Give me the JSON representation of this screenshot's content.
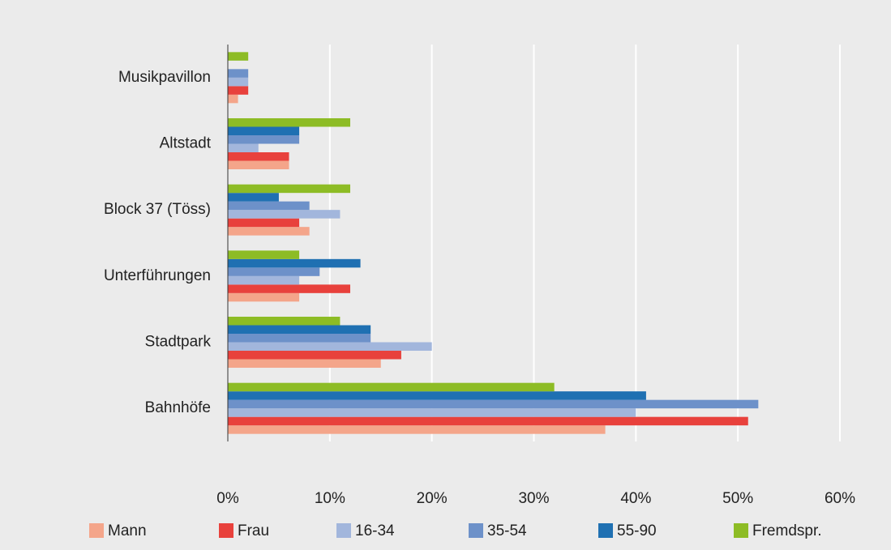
{
  "chart_data": {
    "type": "hbar",
    "categories": [
      "Musikpavillon",
      "Altstadt",
      "Block 37 (Töss)",
      "Unterführungen",
      "Stadtpark",
      "Bahnhöfe"
    ],
    "series": [
      {
        "name": "Mann",
        "color": "#f4a58a",
        "values": [
          1,
          6,
          8,
          7,
          15,
          37
        ]
      },
      {
        "name": "Frau",
        "color": "#e8413c",
        "values": [
          2,
          6,
          7,
          12,
          17,
          51
        ]
      },
      {
        "name": "16-34",
        "color": "#a2b6dc",
        "values": [
          2,
          3,
          11,
          7,
          20,
          40
        ]
      },
      {
        "name": "35-54",
        "color": "#6d91c9",
        "values": [
          2,
          7,
          8,
          9,
          14,
          52
        ]
      },
      {
        "name": "55-90",
        "color": "#1f70b2",
        "values": [
          0,
          7,
          5,
          13,
          14,
          41
        ]
      },
      {
        "name": "Fremdspr.",
        "color": "#8dbc25",
        "values": [
          2,
          12,
          12,
          7,
          11,
          32
        ]
      }
    ],
    "xlim": [
      0,
      60
    ],
    "xticks": [
      {
        "value": 0,
        "label": "0%"
      },
      {
        "value": 10,
        "label": "10%"
      },
      {
        "value": 20,
        "label": "20%"
      },
      {
        "value": 30,
        "label": "30%"
      },
      {
        "value": 40,
        "label": "40%"
      },
      {
        "value": 50,
        "label": "50%"
      },
      {
        "value": 60,
        "label": "60%"
      }
    ],
    "grid": true,
    "legend": "bottom"
  }
}
